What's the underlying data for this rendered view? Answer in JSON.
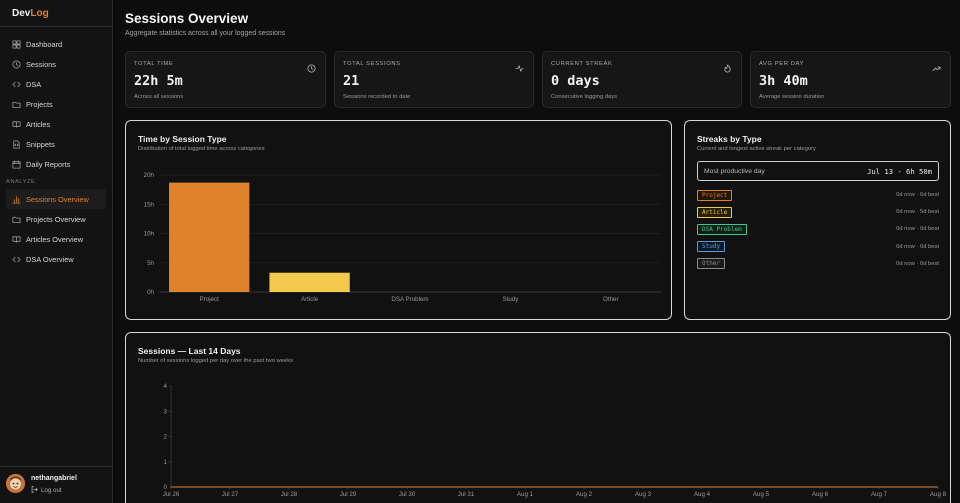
{
  "app": {
    "logo_part1": "Dev",
    "logo_part2": "Log"
  },
  "sidebar": {
    "items": [
      {
        "label": "Dashboard",
        "icon": "layout-grid-icon"
      },
      {
        "label": "Sessions",
        "icon": "clock-icon"
      },
      {
        "label": "DSA",
        "icon": "code-icon"
      },
      {
        "label": "Projects",
        "icon": "folder-icon"
      },
      {
        "label": "Articles",
        "icon": "book-open-icon"
      },
      {
        "label": "Snippets",
        "icon": "file-code-icon"
      },
      {
        "label": "Daily Reports",
        "icon": "calendar-icon"
      }
    ],
    "section_label": "ANALYZE",
    "analyze_items": [
      {
        "label": "Sessions Overview",
        "icon": "bar-chart-icon",
        "active": true
      },
      {
        "label": "Projects Overview",
        "icon": "folder-icon"
      },
      {
        "label": "Articles Overview",
        "icon": "book-open-icon"
      },
      {
        "label": "DSA Overview",
        "icon": "code-icon"
      }
    ],
    "user": {
      "name": "nethangabriel",
      "logout_label": "Log out"
    }
  },
  "header": {
    "title": "Sessions Overview",
    "subtitle": "Aggregate statistics across all your logged sessions"
  },
  "stats": [
    {
      "label": "TOTAL TIME",
      "value": "22h 5m",
      "desc": "Across all sessions",
      "icon": "clock-icon"
    },
    {
      "label": "TOTAL SESSIONS",
      "value": "21",
      "desc": "Sessions recorded to date",
      "icon": "activity-icon"
    },
    {
      "label": "CURRENT STREAK",
      "value": "0 days",
      "desc": "Consecutive logging days",
      "icon": "flame-icon"
    },
    {
      "label": "AVG PER DAY",
      "value": "3h 40m",
      "desc": "Average session duration",
      "icon": "trending-up-icon"
    }
  ],
  "time_by_type": {
    "title": "Time by Session Type",
    "subtitle": "Distribution of total logged time across categories"
  },
  "streaks": {
    "title": "Streaks by Type",
    "subtitle": "Current and longest active streak per category",
    "best_label": "Most productive day",
    "best_value": "Jul 13 - 6h 50m",
    "rows": [
      {
        "tag": "Project",
        "meta": "0d now · 6d best",
        "color": "#e0822c",
        "bg": "#241509"
      },
      {
        "tag": "Article",
        "meta": "0d now · 5d best",
        "color": "#f2c94c",
        "bg": "#26200a"
      },
      {
        "tag": "DSA Problem",
        "meta": "0d now · 0d best",
        "color": "#4cc38a",
        "bg": "#0b2118"
      },
      {
        "tag": "Study",
        "meta": "0d now · 0d best",
        "color": "#5b9bd5",
        "bg": "#0c1a28"
      },
      {
        "tag": "Other",
        "meta": "0d now · 0d best",
        "color": "#8a8a8a",
        "bg": "#1a1a1a"
      }
    ]
  },
  "sessions_14d": {
    "title": "Sessions — Last 14 Days",
    "subtitle": "Number of sessions logged per day over the past two weeks"
  },
  "chart_data": [
    {
      "type": "bar",
      "categories": [
        "Project",
        "Article",
        "DSA Problem",
        "Study",
        "Other"
      ],
      "values": [
        18.7,
        3.3,
        0,
        0,
        0
      ],
      "colors": [
        "#e0822c",
        "#f2c94c",
        "#4cc38a",
        "#5b9bd5",
        "#8a8a8a"
      ],
      "yticks": [
        "0h",
        "5h",
        "10h",
        "15h",
        "20h"
      ],
      "ylim": [
        0,
        20
      ]
    },
    {
      "type": "line",
      "x": [
        "Jul 26",
        "Jul 27",
        "Jul 28",
        "Jul 29",
        "Jul 30",
        "Jul 31",
        "Aug 1",
        "Aug 2",
        "Aug 3",
        "Aug 4",
        "Aug 5",
        "Aug 6",
        "Aug 7",
        "Aug 8"
      ],
      "values": [
        0,
        0,
        0,
        0,
        0,
        0,
        0,
        0,
        0,
        0,
        0,
        0,
        0,
        0
      ],
      "yticks": [
        "0",
        "1",
        "2",
        "3",
        "4"
      ],
      "ylim": [
        0,
        4
      ],
      "color": "#e0822c"
    }
  ]
}
